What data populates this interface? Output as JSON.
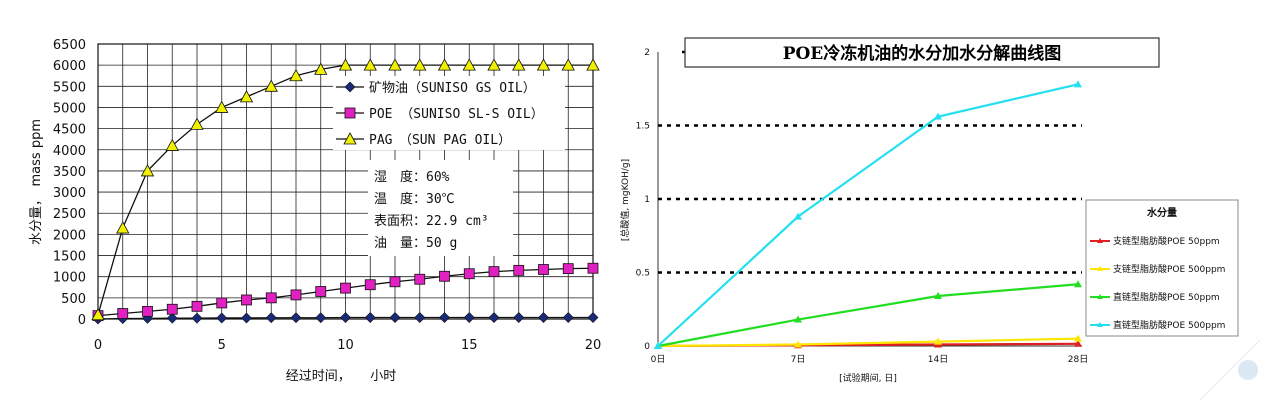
{
  "chart_data": [
    {
      "type": "line",
      "title": "",
      "xlabel": "经过时间，　　小时",
      "ylabel": "水分量，　mass ppm",
      "xlim": [
        0,
        20
      ],
      "ylim": [
        0,
        6500
      ],
      "xticks": [
        0,
        5,
        10,
        15,
        20
      ],
      "yticks": [
        0,
        500,
        1000,
        1500,
        2000,
        2500,
        3000,
        3500,
        4000,
        4500,
        5000,
        5500,
        6000,
        6500
      ],
      "grid": true,
      "legend_position": "top-right",
      "series": [
        {
          "name": "矿物油（SUNISO GS OIL）",
          "color": "#1a2a7a",
          "marker": "diamond",
          "x": [
            0,
            1,
            2,
            3,
            4,
            5,
            6,
            7,
            8,
            9,
            10,
            11,
            12,
            13,
            14,
            15,
            16,
            17,
            18,
            19,
            20
          ],
          "y": [
            0,
            10,
            15,
            20,
            20,
            25,
            25,
            30,
            30,
            30,
            35,
            35,
            35,
            35,
            35,
            35,
            35,
            35,
            35,
            35,
            35
          ]
        },
        {
          "name": "POE （SUNISO SL-S OIL）",
          "color": "#e020c0",
          "marker": "square",
          "x": [
            0,
            1,
            2,
            3,
            4,
            5,
            6,
            7,
            8,
            9,
            10,
            11,
            12,
            13,
            14,
            15,
            16,
            17,
            18,
            19,
            20
          ],
          "y": [
            80,
            130,
            180,
            230,
            300,
            380,
            450,
            500,
            570,
            650,
            730,
            810,
            880,
            940,
            1010,
            1070,
            1120,
            1150,
            1170,
            1190,
            1200
          ]
        },
        {
          "name": "PAG　（SUN PAG OIL）",
          "color": "#f0f000",
          "marker": "triangle",
          "x": [
            0,
            1,
            2,
            3,
            4,
            5,
            6,
            7,
            8,
            9,
            10,
            11,
            12,
            13,
            14,
            15,
            16,
            17,
            18,
            19,
            20
          ],
          "y": [
            100,
            2150,
            3500,
            4100,
            4600,
            5000,
            5250,
            5500,
            5750,
            5900,
            6000,
            6000,
            6000,
            6000,
            6000,
            6000,
            6000,
            6000,
            6000,
            6000,
            6000
          ]
        }
      ],
      "annotations": [
        "湿　度：60%",
        "温　度：30℃",
        "表面积：22.9 cm³",
        "油　量：50 g"
      ]
    },
    {
      "type": "line",
      "title": "POE冷冻机油的水分加水分解曲线图",
      "xlabel": "[试验期间, 日]",
      "ylabel": "[总酸值, mgKOH/g]",
      "categories": [
        "0日",
        "7日",
        "14日",
        "28日"
      ],
      "ylim": [
        0,
        2
      ],
      "yticks": [
        "0",
        "0.5",
        "1",
        "1.5",
        "2"
      ],
      "grid": "dotted horizontal at 0.5, 1, 1.5",
      "legend_title": "水分量",
      "legend_position": "right",
      "series": [
        {
          "name": "支链型脂肪酸POE 50ppm",
          "color": "#e02020",
          "values": [
            0,
            0.005,
            0.01,
            0.015
          ]
        },
        {
          "name": "支链型脂肪酸POE 500ppm",
          "color": "#ffe600",
          "values": [
            0,
            0.01,
            0.03,
            0.05
          ]
        },
        {
          "name": "直链型脂肪酸POE 50ppm",
          "color": "#22dd22",
          "values": [
            0,
            0.18,
            0.34,
            0.42
          ]
        },
        {
          "name": "直链型脂肪酸POE 500ppm",
          "color": "#22e0f0",
          "values": [
            0,
            0.88,
            1.56,
            1.78
          ]
        }
      ]
    }
  ]
}
